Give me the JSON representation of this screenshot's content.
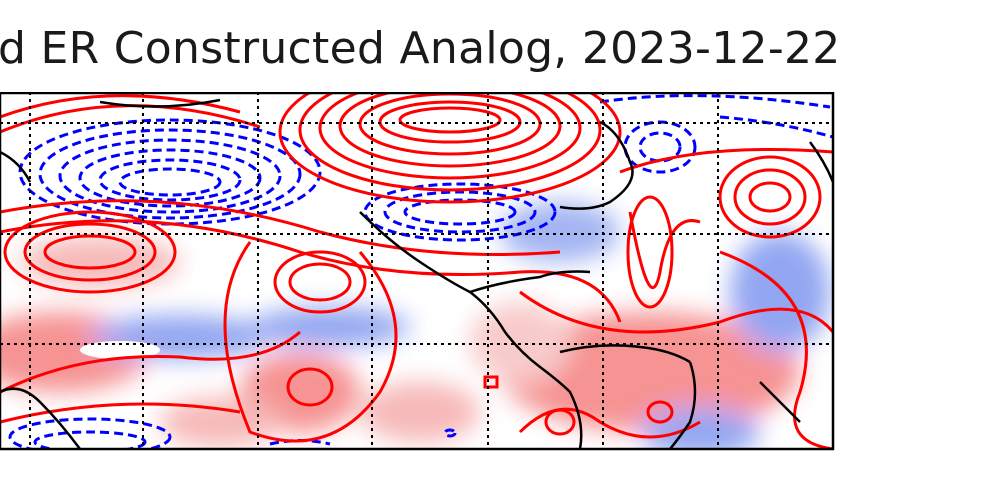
{
  "figure": {
    "title": "d ER Constructed Analog, 2023-12-22"
  },
  "map": {
    "frame_color": "#000000",
    "positive_contour_color": "#ff0000",
    "negative_contour_color": "#0000ff",
    "gridline_style": "dotted",
    "coastline_color": "#000000",
    "shading_colors": [
      "#2b55e6",
      "#ffffff",
      "#ef3b3b"
    ]
  }
}
